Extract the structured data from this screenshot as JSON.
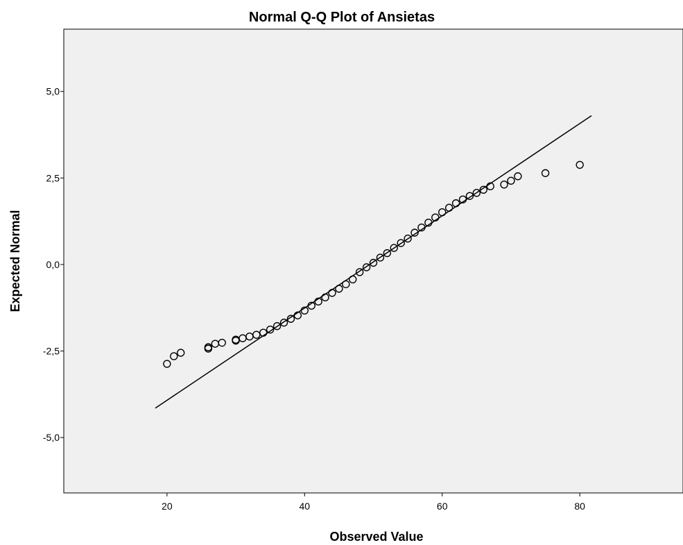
{
  "chart_data": {
    "type": "scatter",
    "title": "Normal Q-Q Plot of Ansietas",
    "xlabel": "Observed Value",
    "ylabel": "Expected Normal",
    "xlim": [
      5,
      95
    ],
    "ylim": [
      -6.6,
      6.8
    ],
    "x_ticks": [
      20,
      40,
      60,
      80
    ],
    "x_tick_labels": [
      "20",
      "40",
      "60",
      "80"
    ],
    "y_ticks": [
      5.0,
      2.5,
      0.0,
      -2.5,
      -5.0
    ],
    "y_tick_labels": [
      "5,0",
      "2,5",
      "0,0",
      "-2,5",
      "-5,0"
    ],
    "grid": false,
    "background_color": "#f0f0f0",
    "marker_color": "#000000",
    "reference_line": {
      "x": [
        18.3,
        81.7
      ],
      "y": [
        -4.15,
        4.3
      ]
    },
    "points": [
      {
        "x": 20,
        "y": -2.87
      },
      {
        "x": 21,
        "y": -2.65
      },
      {
        "x": 22,
        "y": -2.55
      },
      {
        "x": 26,
        "y": -2.43
      },
      {
        "x": 26,
        "y": -2.39
      },
      {
        "x": 27,
        "y": -2.29
      },
      {
        "x": 28,
        "y": -2.26
      },
      {
        "x": 30,
        "y": -2.2
      },
      {
        "x": 30,
        "y": -2.17
      },
      {
        "x": 31,
        "y": -2.13
      },
      {
        "x": 32,
        "y": -2.08
      },
      {
        "x": 33,
        "y": -2.03
      },
      {
        "x": 34,
        "y": -1.97
      },
      {
        "x": 35,
        "y": -1.88
      },
      {
        "x": 36,
        "y": -1.78
      },
      {
        "x": 37,
        "y": -1.68
      },
      {
        "x": 38,
        "y": -1.57
      },
      {
        "x": 39,
        "y": -1.47
      },
      {
        "x": 40,
        "y": -1.33
      },
      {
        "x": 41,
        "y": -1.19
      },
      {
        "x": 42,
        "y": -1.07
      },
      {
        "x": 43,
        "y": -0.95
      },
      {
        "x": 44,
        "y": -0.82
      },
      {
        "x": 45,
        "y": -0.7
      },
      {
        "x": 46,
        "y": -0.57
      },
      {
        "x": 47,
        "y": -0.43
      },
      {
        "x": 48,
        "y": -0.22
      },
      {
        "x": 49,
        "y": -0.08
      },
      {
        "x": 50,
        "y": 0.05
      },
      {
        "x": 51,
        "y": 0.2
      },
      {
        "x": 52,
        "y": 0.33
      },
      {
        "x": 53,
        "y": 0.48
      },
      {
        "x": 54,
        "y": 0.62
      },
      {
        "x": 55,
        "y": 0.75
      },
      {
        "x": 56,
        "y": 0.92
      },
      {
        "x": 57,
        "y": 1.07
      },
      {
        "x": 58,
        "y": 1.21
      },
      {
        "x": 59,
        "y": 1.36
      },
      {
        "x": 60,
        "y": 1.51
      },
      {
        "x": 61,
        "y": 1.64
      },
      {
        "x": 62,
        "y": 1.77
      },
      {
        "x": 63,
        "y": 1.88
      },
      {
        "x": 64,
        "y": 1.98
      },
      {
        "x": 65,
        "y": 2.07
      },
      {
        "x": 66,
        "y": 2.16
      },
      {
        "x": 67,
        "y": 2.26
      },
      {
        "x": 69,
        "y": 2.31
      },
      {
        "x": 70,
        "y": 2.42
      },
      {
        "x": 71,
        "y": 2.55
      },
      {
        "x": 75,
        "y": 2.64
      },
      {
        "x": 80,
        "y": 2.88
      }
    ]
  }
}
